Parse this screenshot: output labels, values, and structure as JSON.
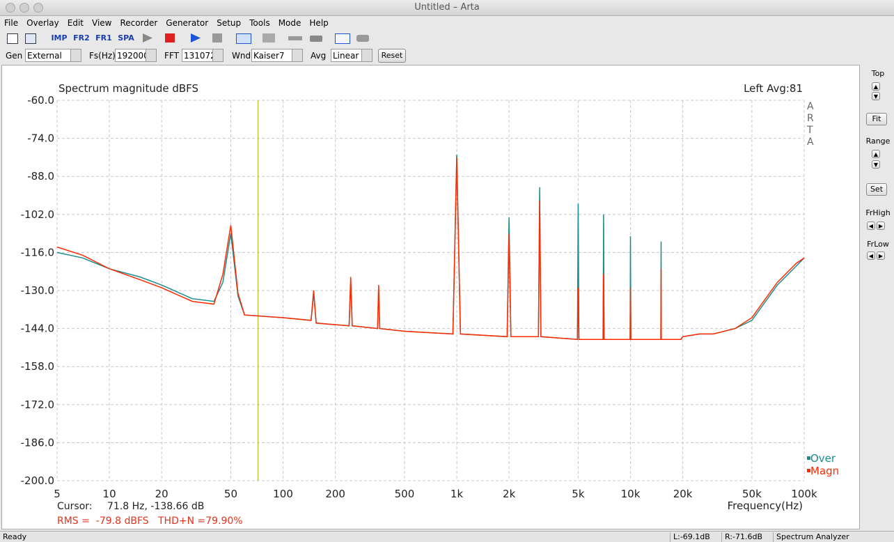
{
  "window_title": "Untitled – Arta",
  "menu": [
    "File",
    "Overlay",
    "Edit",
    "View",
    "Recorder",
    "Generator",
    "Setup",
    "Tools",
    "Mode",
    "Help"
  ],
  "toolbar": [
    "IMP",
    "FR2",
    "FR1",
    "SPA"
  ],
  "params": [
    {
      "label": "Gen",
      "value": "External"
    },
    {
      "label": "Fs(Hz)",
      "value": "192000"
    },
    {
      "label": "FFT",
      "value": "131072"
    },
    {
      "label": "Wnd",
      "value": "Kaiser7"
    },
    {
      "label": "Avg",
      "value": "Linear"
    }
  ],
  "reset_button": "Reset",
  "side_panel": {
    "top": "Top",
    "fit": "Fit",
    "range": "Range",
    "set": "Set",
    "frhigh": "FrHigh",
    "frlow": "FrLow"
  },
  "chart_data": {
    "type": "line",
    "title": "Spectrum magnitude dBFS",
    "channel": "Left  Avg:81",
    "watermark": "ARTA",
    "x_label": "Frequency(Hz)",
    "x_scale": "log",
    "grid": true,
    "legend": "lower right",
    "xlim": [
      5,
      100000
    ],
    "ylim": [
      -200,
      -60
    ],
    "xticks": [
      5,
      10,
      20,
      50,
      100,
      200,
      500,
      {
        "value": 1000,
        "label": "1k"
      },
      {
        "value": 2000,
        "label": "2k"
      },
      {
        "value": 5000,
        "label": "5k"
      },
      {
        "value": 10000,
        "label": "10k"
      },
      {
        "value": 20000,
        "label": "20k"
      },
      {
        "value": 50000,
        "label": "50k"
      },
      {
        "value": 100000,
        "label": "100k"
      }
    ],
    "yticks": [
      {
        "value": -60,
        "label": "-60.0"
      },
      {
        "value": -74,
        "label": "-74.0"
      },
      {
        "value": -88,
        "label": "-88.0"
      },
      {
        "value": -102,
        "label": "-102.0"
      },
      {
        "value": -116,
        "label": "-116.0"
      },
      {
        "value": -130,
        "label": "-130.0"
      },
      {
        "value": -144,
        "label": "-144.0"
      },
      {
        "value": -158,
        "label": "-158.0"
      },
      {
        "value": -172,
        "label": "-172.0"
      },
      {
        "value": -186,
        "label": "-186.0"
      },
      {
        "value": -200,
        "label": "-200.0"
      }
    ],
    "x": [
      5,
      7,
      10,
      15,
      20,
      30,
      40,
      45,
      50,
      55,
      60,
      100,
      145,
      150,
      155,
      240,
      245,
      250,
      350,
      355,
      360,
      500,
      950,
      1000,
      1050,
      1950,
      2000,
      2050,
      2950,
      3000,
      3050,
      4950,
      5000,
      5050,
      6950,
      7000,
      7050,
      9950,
      10000,
      10050,
      14950,
      15000,
      15050,
      19500,
      20000,
      25000,
      30000,
      40000,
      50000,
      70000,
      90000,
      100000
    ],
    "series": [
      {
        "name": "Over",
        "color": "#1b8c8c",
        "values": [
          -116,
          -118,
          -122,
          -125,
          -128,
          -133,
          -134,
          -127,
          -109,
          -132,
          -139,
          -140,
          -141,
          -131,
          -142,
          -143,
          -127,
          -143,
          -144,
          -129,
          -144,
          -145,
          -146,
          -80,
          -146,
          -147,
          -103,
          -147,
          -147,
          -92,
          -147,
          -148,
          -98,
          -148,
          -148,
          -102,
          -148,
          -148,
          -110,
          -148,
          -148,
          -112,
          -148,
          -148,
          -147,
          -146,
          -146,
          -144,
          -141,
          -128,
          -121,
          -118
        ]
      },
      {
        "name": "Magn",
        "color": "#ff2a00",
        "values": [
          -114,
          -117,
          -122,
          -126,
          -129,
          -134,
          -135,
          -124,
          -106,
          -131,
          -139,
          -140,
          -141,
          -130,
          -142,
          -143,
          -125,
          -143,
          -144,
          -128,
          -144,
          -145,
          -146,
          -81,
          -146,
          -147,
          -109,
          -147,
          -147,
          -97,
          -147,
          -148,
          -129,
          -148,
          -148,
          -124,
          -148,
          -148,
          -129,
          -148,
          -148,
          -122,
          -148,
          -148,
          -147,
          -146,
          -146,
          -144,
          -140,
          -127,
          -120,
          -118
        ]
      }
    ],
    "cursor": {
      "label": "Cursor:",
      "x": 71.8,
      "text": "71.8 Hz, -138.66 dB",
      "color": "#b8b825"
    },
    "summary": "RMS =  -79.8 dBFS   THD+N =79.90%"
  },
  "status": [
    "Ready",
    "L:-69.1dB",
    "R:-71.6dB",
    "Spectrum Analyzer"
  ]
}
